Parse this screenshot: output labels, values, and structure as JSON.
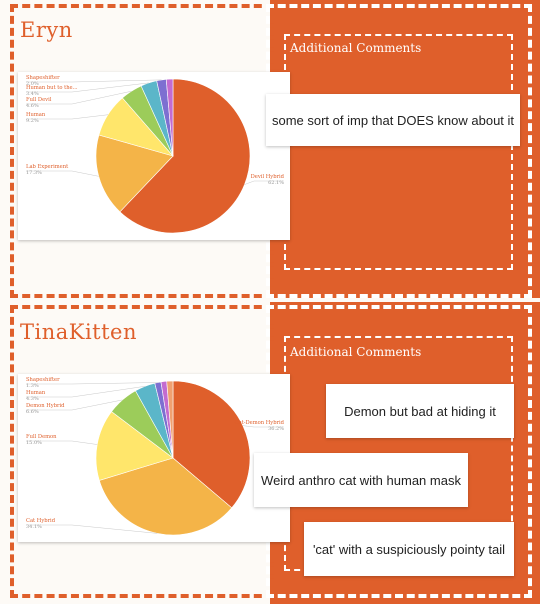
{
  "colors": {
    "accent": "#df5f2b",
    "background": "#fdfaf6",
    "slices": [
      "#df5f2b",
      "#f4b448",
      "#ffe66b",
      "#9ccc5a",
      "#5bb6c9",
      "#7d6fd1",
      "#c36bd0",
      "#f0a070"
    ]
  },
  "sections": [
    {
      "name": "Eryn",
      "comments_title": "Additional Comments",
      "comments": [
        "some sort of imp that DOES know about it"
      ]
    },
    {
      "name": "TinaKitten",
      "comments_title": "Additional Comments",
      "comments": [
        "Demon but bad at hiding it",
        "Weird anthro cat with human mask",
        "'cat' with a suspiciously pointy tail"
      ]
    }
  ],
  "chart_data": [
    {
      "type": "pie",
      "title": "",
      "slices": [
        {
          "label": "Devil Hybrid",
          "value": 62.1
        },
        {
          "label": "Lab Experiment",
          "value": 17.3
        },
        {
          "label": "Human",
          "value": 9.2
        },
        {
          "label": "Full Devil",
          "value": 4.6
        },
        {
          "label": "Human but to the...",
          "value": 3.4
        },
        {
          "label": "Shapeshifter",
          "value": 2.0
        },
        {
          "label": "",
          "value": 1.4
        }
      ],
      "labels_shown": [
        {
          "text": "Devil Hybrid",
          "pct": "62.1%"
        },
        {
          "text": "Lab Experiment",
          "pct": "17.3%"
        },
        {
          "text": "Human",
          "pct": "9.2%"
        },
        {
          "text": "Full Devil",
          "pct": "4.6%"
        },
        {
          "text": "Human but to the...",
          "pct": "3.4%"
        },
        {
          "text": "Shapeshifter",
          "pct": "2.0%"
        }
      ]
    },
    {
      "type": "pie",
      "title": "",
      "slices": [
        {
          "label": "Cat-Demon Hybrid",
          "value": 36.2
        },
        {
          "label": "Cat Hybrid",
          "value": 34.1
        },
        {
          "label": "Full Demon",
          "value": 15.0
        },
        {
          "label": "Demon Hybrid",
          "value": 6.6
        },
        {
          "label": "Human",
          "value": 4.3
        },
        {
          "label": "Shapeshifter",
          "value": 1.3
        },
        {
          "label": "",
          "value": 1.2
        },
        {
          "label": "",
          "value": 1.3
        }
      ],
      "labels_shown": [
        {
          "text": "Cat-Demon Hybrid",
          "pct": "36.2%"
        },
        {
          "text": "Cat Hybrid",
          "pct": "34.1%"
        },
        {
          "text": "Full Demon",
          "pct": "15.0%"
        },
        {
          "text": "Demon Hybrid",
          "pct": "6.6%"
        },
        {
          "text": "Human",
          "pct": "4.3%"
        },
        {
          "text": "Shapeshifter",
          "pct": "1.3%"
        }
      ]
    }
  ]
}
